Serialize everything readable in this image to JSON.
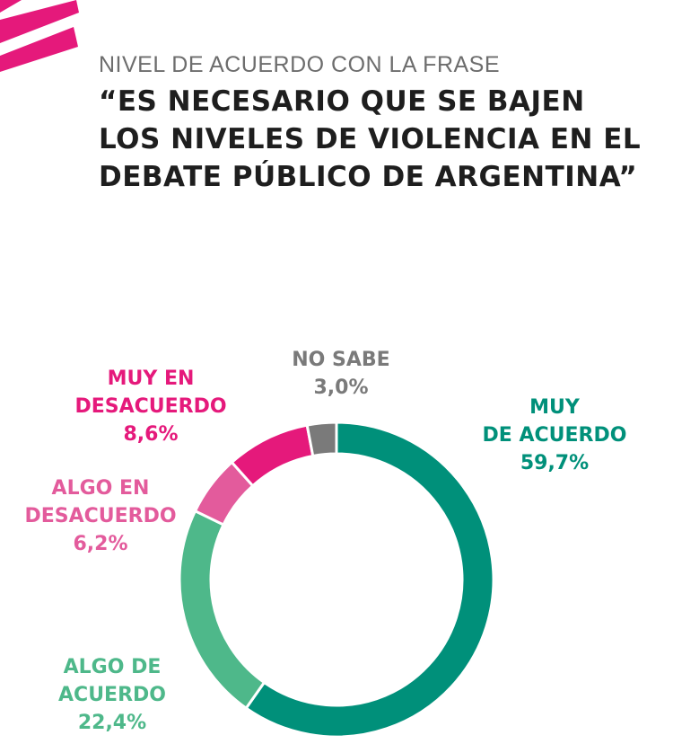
{
  "header": {
    "subtitle": "NIVEL DE ACUERDO CON LA FRASE",
    "title": "“ES NECESARIO QUE SE BAJEN LOS NIVELES DE VIOLENCIA EN EL DEBATE PÚBLICO DE ARGENTINA”"
  },
  "brand": {
    "accent": "#e5197b"
  },
  "chart_data": {
    "type": "pie",
    "donut": true,
    "legend": "none",
    "slices": [
      {
        "label_lines": [
          "MUY",
          "DE ACUERDO"
        ],
        "pct_label": "59,7%",
        "value": 59.7,
        "color": "#00907a",
        "label_color": "#00907a"
      },
      {
        "label_lines": [
          "ALGO DE",
          "ACUERDO"
        ],
        "pct_label": "22,4%",
        "value": 22.4,
        "color": "#4eb88a",
        "label_color": "#4eb88a"
      },
      {
        "label_lines": [
          "ALGO EN",
          "DESACUERDO"
        ],
        "pct_label": "6,2%",
        "value": 6.2,
        "color": "#e35b9c",
        "label_color": "#e35b9c"
      },
      {
        "label_lines": [
          "MUY EN",
          "DESACUERDO"
        ],
        "pct_label": "8,6%",
        "value": 8.6,
        "color": "#e5197b",
        "label_color": "#e5197b"
      },
      {
        "label_lines": [
          "NO SABE"
        ],
        "pct_label": "3,0%",
        "value": 3.0,
        "color": "#7a7a7a",
        "label_color": "#7a7a7a"
      }
    ]
  }
}
